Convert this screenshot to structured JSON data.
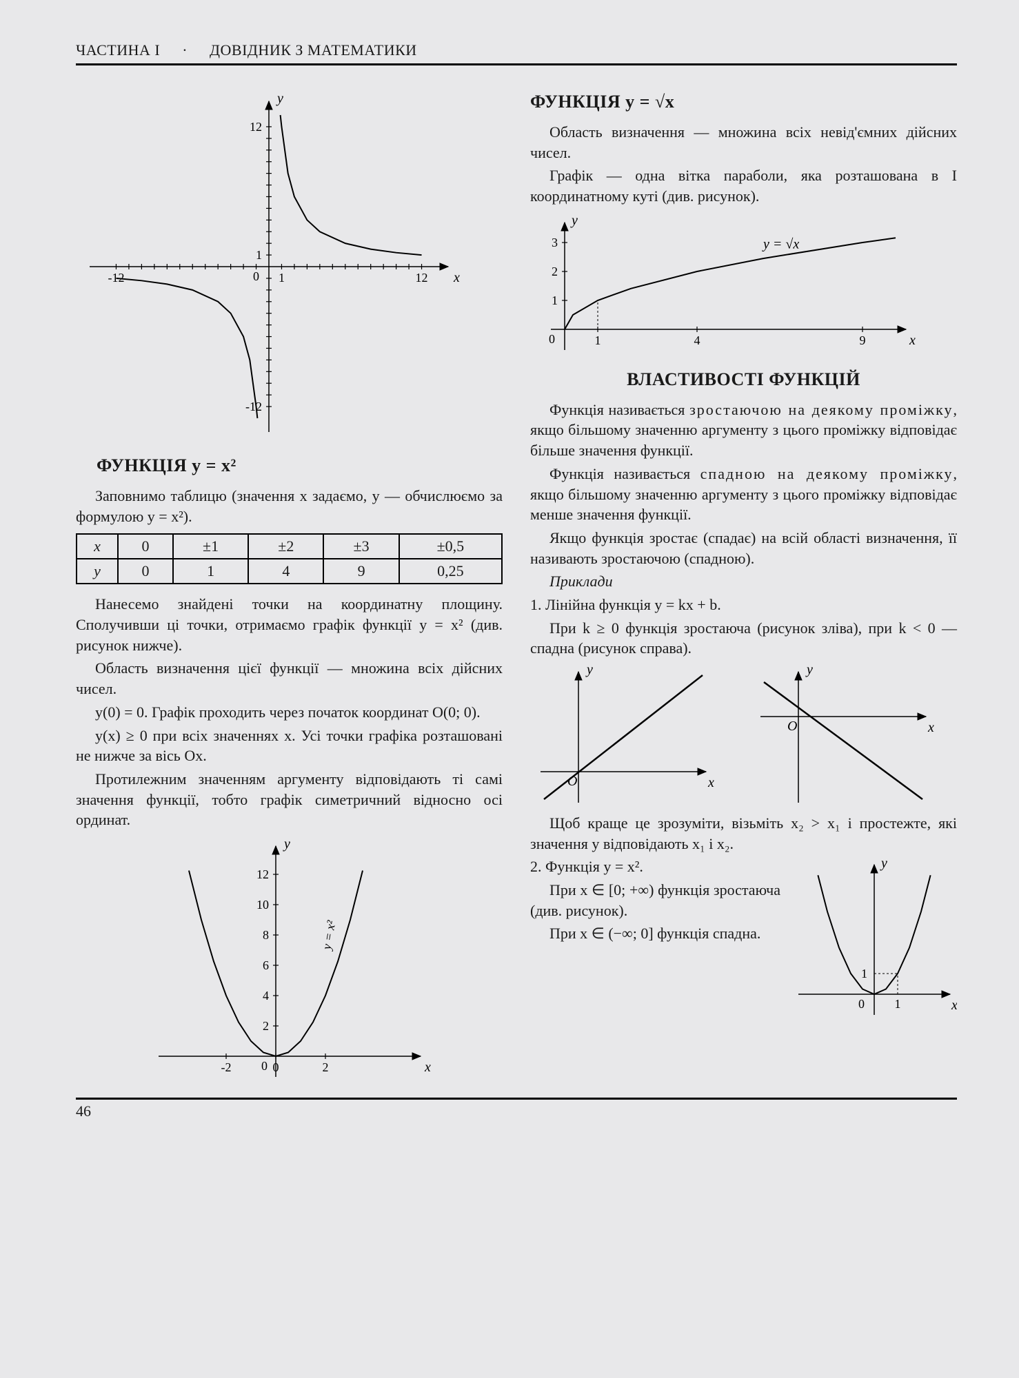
{
  "header": {
    "part": "ЧАСТИНА I",
    "title": "ДОВІДНИК З МАТЕМАТИКИ"
  },
  "page_number": "46",
  "left": {
    "chart_hyperbola": {
      "type": "line",
      "xlim": [
        -13,
        13
      ],
      "ylim": [
        -13,
        13
      ],
      "xticks": [
        -12,
        1,
        12
      ],
      "yticks": [
        -12,
        1,
        12
      ],
      "xlabel": "x",
      "ylabel": "y",
      "curve_color": "#000000",
      "axis_color": "#000000",
      "branch_pos_x": [
        0.9,
        1,
        1.5,
        2,
        3,
        4,
        6,
        8,
        10,
        12
      ],
      "branch_pos_y": [
        13,
        12,
        8,
        6,
        4,
        3,
        2,
        1.5,
        1.2,
        1
      ],
      "branch_neg_x": [
        -0.9,
        -1,
        -1.5,
        -2,
        -3,
        -4,
        -6,
        -8,
        -10,
        -12
      ],
      "branch_neg_y": [
        -13,
        -12,
        -8,
        -6,
        -4,
        -3,
        -2,
        -1.5,
        -1.2,
        -1
      ],
      "stroke_width": 2
    },
    "title_xsq": "ФУНКЦІЯ  y = x²",
    "p1": "Заповнимо таблицю (значення x задаємо, y — обчислюємо за формулою y = x²).",
    "table": {
      "cols": [
        "x",
        "0",
        "±1",
        "±2",
        "±3",
        "±0,5"
      ],
      "row_y": [
        "y",
        "0",
        "1",
        "4",
        "9",
        "0,25"
      ]
    },
    "p2": "Нанесемо знайдені точки на координатну площину. Сполучивши ці точки, отримаємо графік функції y = x² (див. рисунок нижче).",
    "p3": "Область визначення цієї функції — множина всіх дійсних чисел.",
    "p4": "y(0) = 0. Графік проходить через початок координат O(0; 0).",
    "p5": "y(x) ≥ 0 при всіх значеннях x. Усі точки графіка розташовані не нижче за вісь Ox.",
    "p6": "Протилежним значенням аргументу відповідають ті самі значення функції, тобто графік симетричний відносно осі ординат.",
    "chart_parabola": {
      "type": "line",
      "xlim": [
        -4,
        5
      ],
      "ylim": [
        -1,
        13
      ],
      "xticks": [
        -2,
        0,
        2
      ],
      "yticks": [
        2,
        4,
        6,
        8,
        10,
        12
      ],
      "xlabel": "x",
      "ylabel": "y",
      "formula_label": "y = x²",
      "pts_x": [
        -3.5,
        -3,
        -2.5,
        -2,
        -1.5,
        -1,
        -0.5,
        0,
        0.5,
        1,
        1.5,
        2,
        2.5,
        3,
        3.5
      ],
      "pts_y": [
        12.25,
        9,
        6.25,
        4,
        2.25,
        1,
        0.25,
        0,
        0.25,
        1,
        2.25,
        4,
        6.25,
        9,
        12.25
      ],
      "curve_color": "#000000",
      "stroke_width": 2
    }
  },
  "right": {
    "title_sqrt": "ФУНКЦІЯ  y = √x",
    "p1": "Область визначення — множина всіх невід'ємних дійсних чисел.",
    "p2": "Графік — одна вітка параболи, яка розташована в I координатному куті (див. рисунок).",
    "chart_sqrt": {
      "type": "line",
      "xlim": [
        -0.5,
        10
      ],
      "ylim": [
        -0.5,
        3.5
      ],
      "xticks": [
        1,
        4,
        9
      ],
      "yticks": [
        1,
        2,
        3
      ],
      "xlabel": "x",
      "ylabel": "y",
      "formula_label": "y = √x",
      "pts_x": [
        0,
        0.25,
        1,
        2,
        4,
        6,
        9,
        10
      ],
      "pts_y": [
        0,
        0.5,
        1,
        1.41,
        2,
        2.45,
        3,
        3.16
      ],
      "curve_color": "#000000",
      "stroke_width": 2
    },
    "title_props": "ВЛАСТИВОСТІ ФУНКЦІЙ",
    "p3a": "Функція називається ",
    "p3b_spaced": "зростаючою на деякому проміжку",
    "p3c": ", якщо більшому значенню аргументу з цього проміжку відповідає більше значення функції.",
    "p4a": "Функція називається ",
    "p4b_spaced": "спадною на деякому проміжку",
    "p4c": ", якщо більшому значенню аргументу з цього проміжку відповідає менше значення функції.",
    "p5": "Якщо функція зростає (спадає) на всій області визначення, її називають зростаючою (спадною).",
    "p6": "Приклади",
    "p7": "1. Лінійна функція y = kx + b.",
    "p8": "При k ≥ 0 функція зростаюча (рисунок зліва), при k < 0 — спадна (рисунок справа).",
    "chart_linear_inc": {
      "type": "line",
      "xlabel": "x",
      "ylabel": "y",
      "origin": "O"
    },
    "chart_linear_dec": {
      "type": "line",
      "xlabel": "x",
      "ylabel": "y",
      "origin": "O"
    },
    "p9": "Щоб краще це зрозуміти, візьміть x₂ > x₁ і простежте, які значення y відповідають x₁ і x₂.",
    "p10": "2. Функція y = x².",
    "p11": "При x ∈ [0; +∞) функція зростаюча (див. рисунок).",
    "p12": "При x ∈ (−∞; 0] функція спадна.",
    "chart_parabola2": {
      "type": "line",
      "xlim": [
        -3,
        3
      ],
      "ylim": [
        -0.5,
        6
      ],
      "xticks": [
        1
      ],
      "yticks": [
        1
      ],
      "xlabel": "x",
      "ylabel": "y",
      "pts_x": [
        -2.4,
        -2,
        -1.5,
        -1,
        -0.5,
        0,
        0.5,
        1,
        1.5,
        2,
        2.4
      ],
      "pts_y": [
        5.76,
        4,
        2.25,
        1,
        0.25,
        0,
        0.25,
        1,
        2.25,
        4,
        5.76
      ],
      "stroke_width": 2
    }
  }
}
